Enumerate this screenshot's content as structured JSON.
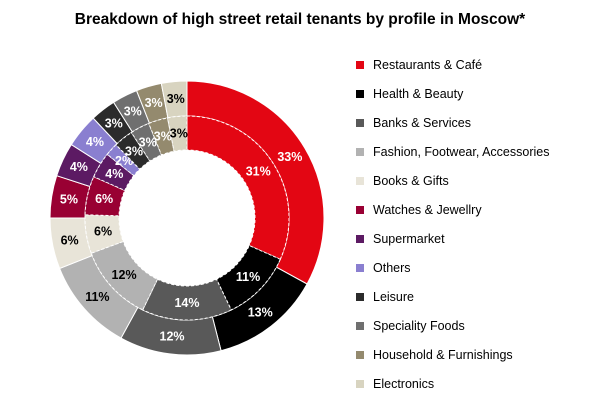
{
  "chart_data": {
    "type": "donut",
    "title": "Breakdown of high street retail tenants by profile in Moscow*",
    "categories": [
      "Restaurants & Café",
      "Health & Beauty",
      "Banks & Services",
      "Fashion, Footwear, Accessories",
      "Books & Gifts",
      "Watches & Jewellry",
      "Supermarket",
      "Others",
      "Leisure",
      "Speciality Foods",
      "Household & Furnishings",
      "Electronics"
    ],
    "colors": [
      "#e30613",
      "#000000",
      "#595959",
      "#b2b2b2",
      "#e8e4d8",
      "#990033",
      "#5c1a63",
      "#8a7fd0",
      "#2b2b2b",
      "#6f6f6f",
      "#948a6e",
      "#d8d4c0"
    ],
    "series": [
      {
        "ring": "outer",
        "values": [
          33,
          13,
          12,
          11,
          6,
          5,
          4,
          4,
          3,
          3,
          3,
          3
        ]
      },
      {
        "ring": "inner",
        "values": [
          31,
          11,
          14,
          12,
          6,
          6,
          4,
          2,
          3,
          3,
          3,
          3
        ]
      }
    ],
    "unit": "%",
    "legend_position": "right"
  }
}
